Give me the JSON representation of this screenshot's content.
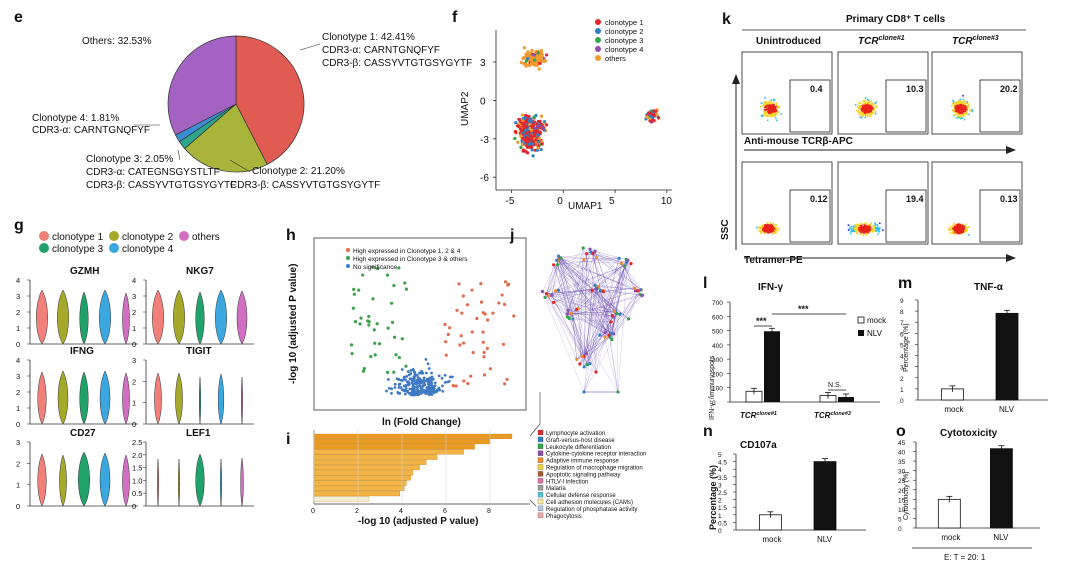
{
  "panels": {
    "e": {
      "letter": "e",
      "slices": [
        {
          "label": "Clonotype 1: 42.41%",
          "line1": "CDR3-α: CARNTGNQFYF",
          "line2": "CDR3-β: CASSYVTGTGSYGYTF",
          "value": 42.41,
          "color": "#e15b52"
        },
        {
          "label": "Clonotype 2: 21.20%",
          "line1": "CDR3-β: CASSYVTGTGSYGYTF",
          "line2": "",
          "value": 21.2,
          "color": "#a9b43a"
        },
        {
          "label": "Clonotype 3: 2.05%",
          "line1": "CDR3-α: CATEGNSGYSTLTF",
          "line2": "CDR3-β: CASSYVTGTGSYGYTF",
          "value": 2.05,
          "color": "#2da58a"
        },
        {
          "label": "Clonotype 4: 1.81%",
          "line1": "CDR3-α: CARNTGNQFYF",
          "line2": "",
          "value": 1.81,
          "color": "#3b8fd4"
        },
        {
          "label": "Others: 32.53%",
          "line1": "",
          "line2": "",
          "value": 32.53,
          "color": "#a463c2"
        }
      ]
    },
    "f": {
      "letter": "f",
      "xlabel": "UMAP1",
      "ylabel": "UMAP2",
      "xticks": [
        "-5",
        "0",
        "5",
        "10"
      ],
      "yticks": [
        "3",
        "0",
        "-3",
        "-6"
      ],
      "legend": [
        {
          "name": "clonotype 1",
          "color": "#e3262b"
        },
        {
          "name": "clonotype 2",
          "color": "#2f7fc6"
        },
        {
          "name": "clonotype 3",
          "color": "#2fa64a"
        },
        {
          "name": "clonotype 4",
          "color": "#8b4db0"
        },
        {
          "name": "others",
          "color": "#f29a2e"
        }
      ]
    },
    "g": {
      "letter": "g",
      "legend": [
        {
          "name": "clonotype 1",
          "color": "#f08079"
        },
        {
          "name": "clonotype 2",
          "color": "#a6a82a"
        },
        {
          "name": "clonotype 3",
          "color": "#20a36b"
        },
        {
          "name": "clonotype 4",
          "color": "#3ba7e0"
        },
        {
          "name": "others",
          "color": "#d170c2"
        }
      ],
      "plots": [
        {
          "title": "GZMH",
          "yticks": [
            "4",
            "3",
            "2",
            "1",
            "0"
          ],
          "widths": [
            0.8,
            0.8,
            0.6,
            0.8,
            0.5
          ]
        },
        {
          "title": "NKG7",
          "yticks": [
            "4",
            "3",
            "2",
            "1",
            "0"
          ],
          "widths": [
            0.8,
            0.8,
            0.6,
            0.8,
            0.7
          ]
        },
        {
          "title": "IFNG",
          "yticks": [
            "4",
            "3",
            "2",
            "1",
            "0"
          ],
          "widths": [
            0.6,
            0.7,
            0.6,
            0.7,
            0.5
          ]
        },
        {
          "title": "TIGIT",
          "yticks": [
            "3",
            "2",
            "1",
            "0"
          ],
          "widths": [
            0.5,
            0.5,
            0.1,
            0.4,
            0.1
          ]
        },
        {
          "title": "CD27",
          "yticks": [
            "3",
            "2",
            "1",
            "0"
          ],
          "widths": [
            0.6,
            0.5,
            0.8,
            0.7,
            0.5
          ]
        },
        {
          "title": "LEF1",
          "yticks": [
            "2.5",
            "2.0",
            "1.5",
            "1.0",
            "0.5",
            "0"
          ],
          "widths": [
            0.1,
            0.1,
            0.6,
            0.1,
            0.2
          ]
        }
      ]
    },
    "h": {
      "letter": "h",
      "ylabel": "-log 10 (adjusted P value)",
      "xlabel": "ln (Fold Change)",
      "legend": [
        {
          "name": "High expressed in Clonotype 1, 2 & 4",
          "color": "#e06b4e"
        },
        {
          "name": "High expressed in Clonotype 3 & others",
          "color": "#3aa34a"
        },
        {
          "name": "No significance",
          "color": "#3f79c4"
        }
      ]
    },
    "i": {
      "letter": "i",
      "xlabel": "-log 10 (adjusted P value)",
      "xticks": [
        "0",
        "2",
        "4",
        "6",
        "8"
      ],
      "bars": [
        9.0,
        8.0,
        7.3,
        6.8,
        5.6,
        5.1,
        4.8,
        4.5,
        4.4,
        4.2,
        4.1,
        3.9,
        2.5
      ],
      "legend": [
        {
          "name": "Lymphocyte activation",
          "color": "#e3262b"
        },
        {
          "name": "Graft-versus-host disease",
          "color": "#2f7fc6"
        },
        {
          "name": "Leukocyte differentiation",
          "color": "#2fa64a"
        },
        {
          "name": "Cytokine-cytokine receptor interaction",
          "color": "#8b4db0"
        },
        {
          "name": "Adaptive immune response",
          "color": "#f08a24"
        },
        {
          "name": "Regulation of macrophage migration",
          "color": "#f2d23a"
        },
        {
          "name": "Apoptotic signaling pathway",
          "color": "#a55a2a"
        },
        {
          "name": "HTLV-I infection",
          "color": "#e46fa8"
        },
        {
          "name": "Malaria",
          "color": "#9a9a9a"
        },
        {
          "name": "Cellular defense response",
          "color": "#53c2d6"
        },
        {
          "name": "Cell adhesion molecules (CAMs)",
          "color": "#f7e9a0"
        },
        {
          "name": "Regulation of phosphatase activity",
          "color": "#b3c7e6"
        },
        {
          "name": "Phagocytosis",
          "color": "#f3a7a3"
        }
      ]
    },
    "j": {
      "letter": "j"
    },
    "k": {
      "letter": "k",
      "title": "Primary CD8⁺ T cells",
      "columns": [
        "Unintroduced",
        "TCR",
        "TCR"
      ],
      "column_sup": [
        "",
        "clone#1",
        "clone#3"
      ],
      "row1_values": [
        "0.4",
        "10.3",
        "20.2"
      ],
      "row2_values": [
        "0.12",
        "19.4",
        "0.13"
      ],
      "row1_xlabel": "Anti-mouse TCRβ-APC",
      "row2_xlabel": "Tetramer-PE",
      "ylabel": "SSC"
    },
    "l": {
      "letter": "l",
      "title": "IFN-γ",
      "ylabel": "IFN-γ⁺/immunospots",
      "yticks": [
        "700",
        "600",
        "500",
        "400",
        "300",
        "200",
        "100",
        "0"
      ],
      "groups": [
        "TCR",
        "TCR"
      ],
      "group_sup": [
        "clone#1",
        "clone#3"
      ],
      "mock": [
        75,
        45
      ],
      "nlv": [
        495,
        35
      ],
      "ymax": 700,
      "sig1": "***",
      "sig2": "***",
      "sig3": "N.S.",
      "legend_mock": "mock",
      "legend_nlv": "NLV"
    },
    "m": {
      "letter": "m",
      "title": "TNF-α",
      "ylabel": "Percentage (%)",
      "yticks": [
        "9",
        "8",
        "7",
        "6",
        "5",
        "4",
        "3",
        "2",
        "1",
        "0"
      ],
      "categories": [
        "mock",
        "NLV"
      ],
      "values": [
        1.0,
        7.8
      ],
      "ymax": 9
    },
    "n": {
      "letter": "n",
      "title": "CD107a",
      "ylabel": "Percentage (%)",
      "yticks": [
        "5",
        "4.5",
        "4",
        "3.5",
        "3",
        "2.5",
        "2",
        "1.5",
        "1",
        "0.5",
        "0"
      ],
      "categories": [
        "mock",
        "NLV"
      ],
      "values": [
        1.0,
        4.5
      ],
      "ymax": 5
    },
    "o": {
      "letter": "o",
      "title": "Cytotoxicity",
      "ylabel": "Cytotoxicity (%)",
      "yticks": [
        "45",
        "40",
        "35",
        "30",
        "25",
        "20",
        "15",
        "10",
        "5",
        "0"
      ],
      "categories": [
        "mock",
        "NLV"
      ],
      "values": [
        15,
        41.5
      ],
      "ymax": 45,
      "footer": "E: T = 20: 1"
    }
  }
}
